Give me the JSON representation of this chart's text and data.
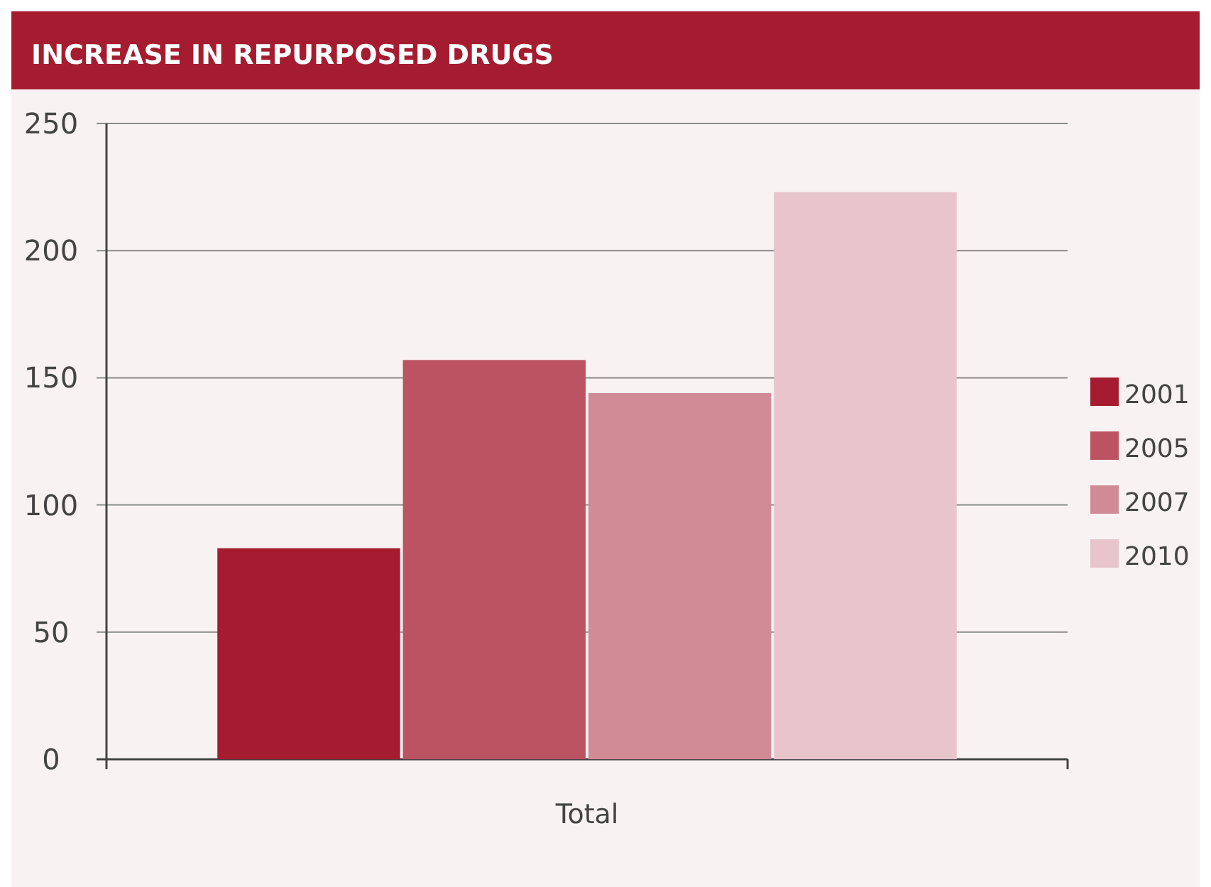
{
  "chart_data": {
    "type": "bar",
    "title": "INCREASE IN REPURPOSED DRUGS",
    "categories": [
      "Total"
    ],
    "series": [
      {
        "name": "2001",
        "color": "#a51c30",
        "values": [
          83
        ]
      },
      {
        "name": "2005",
        "color": "#bc5363",
        "values": [
          157
        ]
      },
      {
        "name": "2007",
        "color": "#d08b97",
        "values": [
          144
        ]
      },
      {
        "name": "2010",
        "color": "#e8c5cb",
        "values": [
          223
        ]
      }
    ],
    "ylim": [
      0,
      250
    ],
    "yticks": [
      0,
      50,
      100,
      150,
      200,
      250
    ],
    "grid": "y",
    "legend": "right"
  }
}
